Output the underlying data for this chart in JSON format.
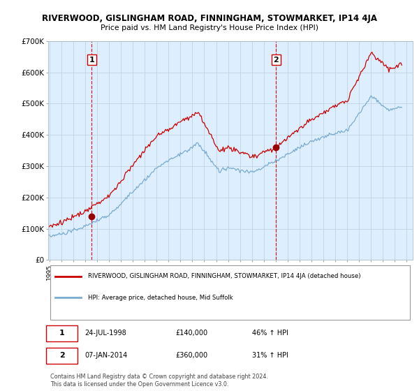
{
  "title": "RIVERWOOD, GISLINGHAM ROAD, FINNINGHAM, STOWMARKET, IP14 4JA",
  "subtitle": "Price paid vs. HM Land Registry's House Price Index (HPI)",
  "legend_line1": "RIVERWOOD, GISLINGHAM ROAD, FINNINGHAM, STOWMARKET, IP14 4JA (detached house)",
  "legend_line2": "HPI: Average price, detached house, Mid Suffolk",
  "sale1_label": "1",
  "sale1_date": "24-JUL-1998",
  "sale1_price": "£140,000",
  "sale1_hpi": "46% ↑ HPI",
  "sale2_label": "2",
  "sale2_date": "07-JAN-2014",
  "sale2_price": "£360,000",
  "sale2_hpi": "31% ↑ HPI",
  "footer": "Contains HM Land Registry data © Crown copyright and database right 2024.\nThis data is licensed under the Open Government Licence v3.0.",
  "property_color": "#cc0000",
  "hpi_color": "#7aabcf",
  "sale_dot_color": "#990000",
  "marker_border_color": "#cc0000",
  "chart_bg_color": "#ddeeff",
  "ylim": [
    0,
    700000
  ],
  "yticks": [
    0,
    100000,
    200000,
    300000,
    400000,
    500000,
    600000,
    700000
  ],
  "ytick_labels": [
    "£0",
    "£100K",
    "£200K",
    "£300K",
    "£400K",
    "£500K",
    "£600K",
    "£700K"
  ],
  "sale1_x": 1998.56,
  "sale1_y": 140000,
  "sale2_x": 2014.02,
  "sale2_y": 360000,
  "xlim_min": 1994.9,
  "xlim_max": 2025.5
}
